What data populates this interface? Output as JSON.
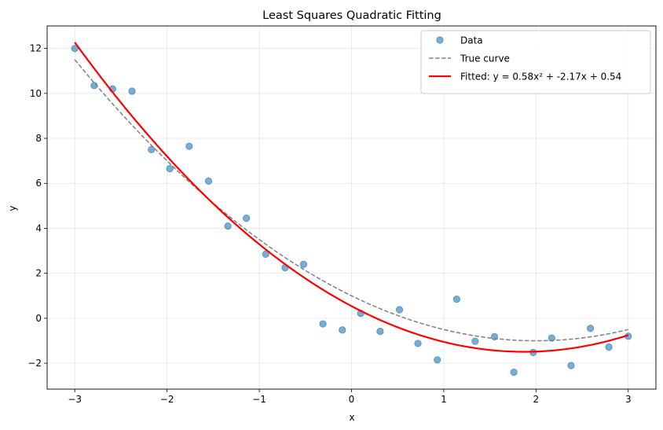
{
  "chart_data": {
    "type": "scatter",
    "title": "Least Squares Quadratic Fitting",
    "xlabel": "x",
    "ylabel": "y",
    "xlim": [
      -3.3,
      3.3
    ],
    "ylim": [
      -3.15,
      13.0
    ],
    "xticks": [
      -3,
      -2,
      -1,
      0,
      1,
      2,
      3
    ],
    "xtick_labels": [
      "−3",
      "−2",
      "−1",
      "0",
      "1",
      "2",
      "3"
    ],
    "yticks": [
      -2,
      0,
      2,
      4,
      6,
      8,
      10,
      12
    ],
    "ytick_labels": [
      "−2",
      "0",
      "2",
      "4",
      "6",
      "8",
      "10",
      "12"
    ],
    "grid": true,
    "legend_position": "top-right",
    "series": [
      {
        "name": "Data",
        "kind": "scatter",
        "color": "#1f77b4",
        "x": [
          -3.0,
          -2.79,
          -2.59,
          -2.38,
          -2.17,
          -1.97,
          -1.76,
          -1.55,
          -1.34,
          -1.14,
          -0.93,
          -0.72,
          -0.52,
          -0.31,
          -0.1,
          0.1,
          0.31,
          0.52,
          0.72,
          0.93,
          1.14,
          1.34,
          1.55,
          1.76,
          1.97,
          2.17,
          2.38,
          2.59,
          2.79,
          3.0
        ],
        "y": [
          12.0,
          10.35,
          10.2,
          10.1,
          7.5,
          6.65,
          7.65,
          6.1,
          4.1,
          4.45,
          2.85,
          2.25,
          2.4,
          -0.25,
          -0.52,
          0.22,
          -0.58,
          0.38,
          -1.12,
          -1.85,
          0.85,
          -1.02,
          -0.82,
          -2.4,
          -1.52,
          -0.88,
          -2.1,
          -0.45,
          -1.28,
          -0.8
        ]
      },
      {
        "name": "True curve",
        "kind": "line",
        "style": "dashed",
        "color": "#808080",
        "coefficients": {
          "a": 0.5,
          "b": -2.0,
          "c": 1.0
        }
      },
      {
        "name": "Fitted: y = 0.58x² + -2.17x + 0.54",
        "kind": "line",
        "style": "solid",
        "color": "#ff0000",
        "coefficients": {
          "a": 0.58,
          "b": -2.17,
          "c": 0.54
        }
      }
    ]
  }
}
